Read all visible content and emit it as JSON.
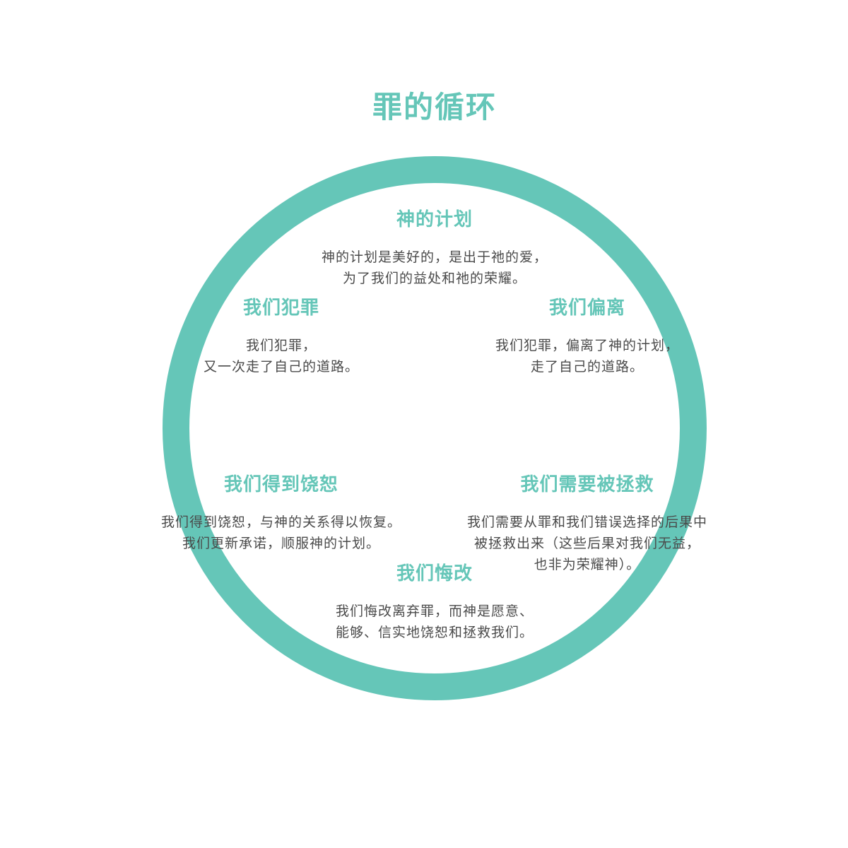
{
  "title": "罪的循环",
  "colors": {
    "accent": "#65c6b8",
    "text": "#4a4a4a",
    "background": "#ffffff"
  },
  "nodes": {
    "plan": {
      "title": "神的计划",
      "lines": [
        "神的计划是美好的，是出于祂的爱，",
        "为了我们的益处和祂的荣耀。"
      ]
    },
    "depart": {
      "title": "我们偏离",
      "lines": [
        "我们犯罪，偏离了神的计划，",
        "走了自己的道路。"
      ]
    },
    "need_saved": {
      "title": "我们需要被拯救",
      "lines": [
        "我们需要从罪和我们错误选择的后果中",
        "被拯救出来（这些后果对我们无益，",
        "也非为荣耀神）。"
      ]
    },
    "repent": {
      "title": "我们悔改",
      "lines": [
        "我们悔改离弃罪，而神是愿意、",
        "能够、信实地饶恕和拯救我们。"
      ]
    },
    "forgiven": {
      "title": "我们得到饶恕",
      "lines": [
        "我们得到饶恕，与神的关系得以恢复。",
        "我们更新承诺，顺服神的计划。"
      ]
    },
    "sin_again": {
      "title": "我们犯罪",
      "lines": [
        "我们犯罪，",
        "又一次走了自己的道路。"
      ]
    }
  }
}
